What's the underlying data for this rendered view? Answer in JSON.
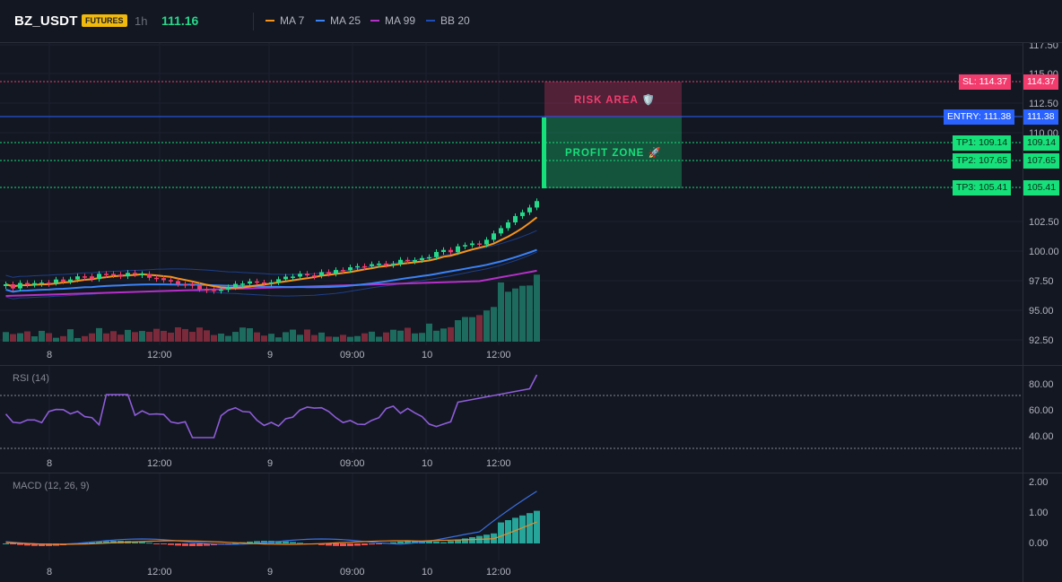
{
  "header": {
    "symbol": "BZ_USDT",
    "badge": "FUTURES",
    "interval": "1h",
    "last_price": "111.16",
    "indicators": [
      {
        "label": "MA 7",
        "color": "#f7931a"
      },
      {
        "label": "MA 25",
        "color": "#3b82f6"
      },
      {
        "label": "MA 99",
        "color": "#b530c8"
      },
      {
        "label": "BB 20",
        "color": "#1e4db7"
      }
    ]
  },
  "price_pane": {
    "y_ticks": [
      "117.50",
      "115.00",
      "112.50",
      "110.00",
      "102.50",
      "100.00",
      "97.50",
      "95.00",
      "92.50"
    ],
    "x_ticks": [
      "8",
      "12:00",
      "9",
      "09:00",
      "10",
      "12:00"
    ]
  },
  "trade_levels": {
    "sl": {
      "label": "SL: 114.37",
      "value": "114.37",
      "color": "#f23c6e"
    },
    "entry": {
      "label": "ENTRY: 111.38",
      "value": "111.38",
      "color": "#2962ff"
    },
    "tp1": {
      "label": "TP1: 109.14",
      "value": "109.14",
      "color": "#16e07a"
    },
    "tp2": {
      "label": "TP2: 107.65",
      "value": "107.65",
      "color": "#16e07a"
    },
    "tp3": {
      "label": "TP3: 105.41",
      "value": "105.41",
      "color": "#16e07a"
    },
    "risk_label": "RISK AREA 🛡️",
    "profit_label": "PROFIT ZONE 🚀"
  },
  "rsi_pane": {
    "title": "RSI (14)",
    "y_ticks": [
      "80.00",
      "60.00",
      "40.00"
    ],
    "x_ticks": [
      "8",
      "12:00",
      "9",
      "09:00",
      "10",
      "12:00"
    ]
  },
  "macd_pane": {
    "title": "MACD (12, 26, 9)",
    "y_ticks": [
      "2.00",
      "1.00",
      "0.00"
    ],
    "x_ticks": [
      "8",
      "12:00",
      "9",
      "09:00",
      "10",
      "12:00"
    ]
  },
  "colors": {
    "background": "#131722",
    "up": "#26d98a",
    "down": "#f23c6e",
    "vol_up": "#1d6b5e",
    "vol_down": "#7a2a3a",
    "rsi_line": "#8e5cd9",
    "macd_line": "#3b6fe0",
    "signal_line": "#f08a24"
  }
}
